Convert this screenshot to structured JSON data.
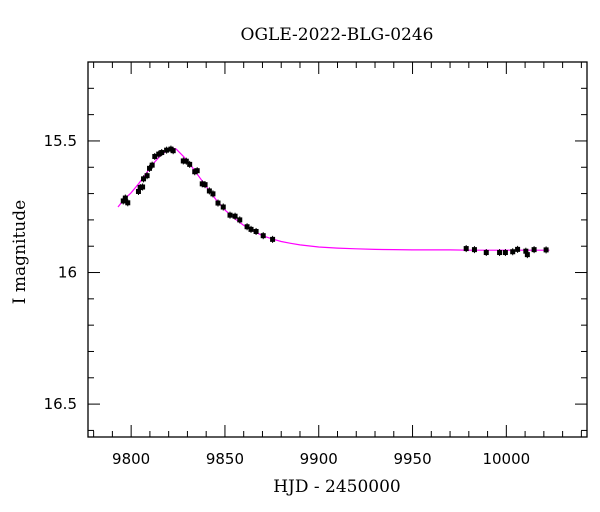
{
  "chart_data": {
    "type": "scatter",
    "title": "OGLE-2022-BLG-0246",
    "xlabel": "HJD - 2450000",
    "ylabel": "I magnitude",
    "xlim": [
      9777,
      10043
    ],
    "ylim": [
      16.625,
      15.2
    ],
    "y_inverted": true,
    "x_ticks": [
      9800,
      9850,
      9900,
      9950,
      10000
    ],
    "x_tick_labels": [
      "9800",
      "9850",
      "9900",
      "9950",
      "10000"
    ],
    "y_ticks": [
      15.5,
      16,
      16.5
    ],
    "y_tick_labels": [
      "15.5",
      "16",
      "16.5"
    ],
    "grid": false,
    "colors": {
      "points": "#000000",
      "model": "#ff00ff",
      "frame": "#000000"
    },
    "series": [
      {
        "kind": "observations",
        "x": [
          9795.8,
          9796.9,
          9798.2,
          9803.9,
          9804.8,
          9806.1,
          9806.6,
          9808.5,
          9809.8,
          9811.2,
          9812.6,
          9814.7,
          9816.3,
          9818.9,
          9821.2,
          9822.4,
          9827.8,
          9829.4,
          9831.2,
          9833.9,
          9835.2,
          9837.9,
          9839.4,
          9841.7,
          9843.6,
          9846.3,
          9849.1,
          9852.7,
          9855.4,
          9857.9,
          9861.8,
          9863.9,
          9866.6,
          9870.4,
          9875.4,
          9978.6,
          9983.0,
          9989.3,
          9996.4,
          9999.5,
          10003.4,
          10006.0,
          10010.4,
          10011.2,
          10014.8,
          10021.2
        ],
        "y": [
          15.728,
          15.717,
          15.735,
          15.692,
          15.677,
          15.675,
          15.644,
          15.632,
          15.604,
          15.592,
          15.559,
          15.55,
          15.544,
          15.535,
          15.531,
          15.537,
          15.576,
          15.577,
          15.589,
          15.617,
          15.613,
          15.663,
          15.666,
          15.69,
          15.701,
          15.736,
          15.751,
          15.782,
          15.786,
          15.8,
          15.826,
          15.836,
          15.844,
          15.86,
          15.874,
          15.909,
          15.913,
          15.924,
          15.924,
          15.924,
          15.921,
          15.912,
          15.919,
          15.932,
          15.913,
          15.914
        ]
      },
      {
        "kind": "model",
        "x": [
          9793,
          9796,
          9800,
          9804,
          9808,
          9812,
          9816,
          9820,
          9822,
          9824,
          9828,
          9832,
          9836,
          9840,
          9845,
          9850,
          9855,
          9860,
          9865,
          9870,
          9875,
          9880,
          9885,
          9890,
          9900,
          9910,
          9920,
          9930,
          9940,
          9950,
          9960,
          9970,
          9980,
          9990,
          10000,
          10010,
          10020,
          10023
        ],
        "y": [
          15.751,
          15.724,
          15.697,
          15.662,
          15.623,
          15.584,
          15.553,
          15.532,
          15.527,
          15.531,
          15.56,
          15.595,
          15.634,
          15.673,
          15.721,
          15.762,
          15.794,
          15.821,
          15.842,
          15.86,
          15.872,
          15.882,
          15.889,
          15.895,
          15.903,
          15.907,
          15.91,
          15.912,
          15.913,
          15.914,
          15.914,
          15.914,
          15.915,
          15.915,
          15.915,
          15.915,
          15.915,
          15.915
        ]
      }
    ]
  }
}
